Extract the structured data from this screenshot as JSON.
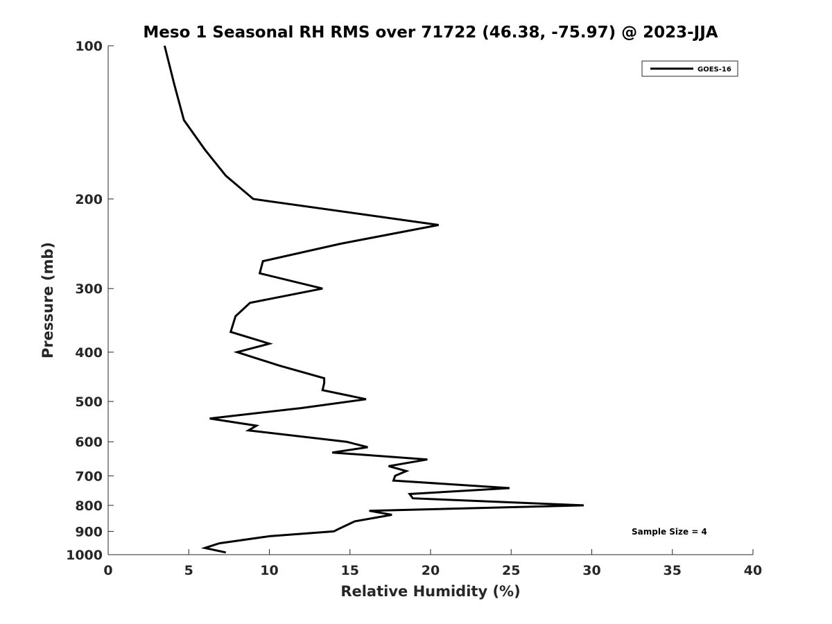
{
  "chart_data": {
    "type": "line",
    "title": "Meso 1 Seasonal RH RMS over 71722 (46.38, -75.97) @ 2023-JJA",
    "xlabel": "Relative Humidity (%)",
    "ylabel": "Pressure (mb)",
    "xlim": [
      0,
      40
    ],
    "ylim": [
      100,
      1000
    ],
    "y_scale": "log",
    "y_reversed": true,
    "x_ticks": [
      "0",
      "5",
      "10",
      "15",
      "20",
      "25",
      "30",
      "35",
      "40"
    ],
    "y_ticks": [
      "100",
      "200",
      "300",
      "400",
      "500",
      "600",
      "700",
      "800",
      "900",
      "1000"
    ],
    "grid": false,
    "legend_position": "top-right",
    "annotation": "Sample Size = 4",
    "series": [
      {
        "name": "GOES-16",
        "color": "#000000",
        "x": [
          3.5,
          4.1,
          4.7,
          6.0,
          7.3,
          9.0,
          20.5,
          14.4,
          9.6,
          9.4,
          13.3,
          8.8,
          7.9,
          7.6,
          10.0,
          8.0,
          10.6,
          13.4,
          13.4,
          13.3,
          16.0,
          12.0,
          6.3,
          9.2,
          8.7,
          14.8,
          16.1,
          13.9,
          19.8,
          17.4,
          18.5,
          17.8,
          17.7,
          24.9,
          18.7,
          18.9,
          29.5,
          16.2,
          17.6,
          15.3,
          14.3,
          14.0,
          10.0,
          6.9,
          6.0,
          7.3
        ],
        "y": [
          100,
          119,
          140,
          160,
          180,
          200,
          225,
          245,
          265,
          280,
          300,
          320,
          340,
          365,
          385,
          400,
          425,
          450,
          460,
          475,
          495,
          515,
          540,
          558,
          570,
          600,
          615,
          630,
          650,
          670,
          685,
          700,
          715,
          740,
          760,
          775,
          800,
          820,
          835,
          860,
          890,
          900,
          920,
          950,
          970,
          990
        ]
      }
    ]
  }
}
